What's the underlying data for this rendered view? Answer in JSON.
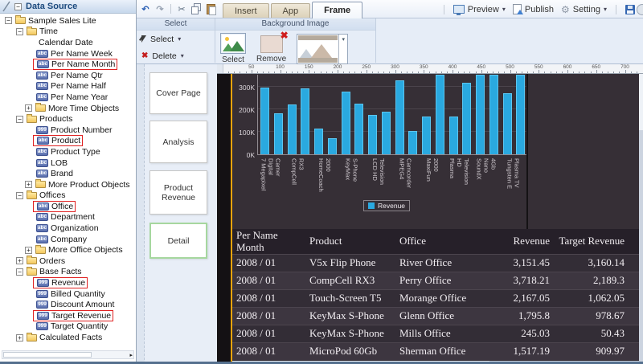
{
  "app": {
    "tabs": [
      {
        "label": "Insert",
        "active": false
      },
      {
        "label": "App",
        "active": false
      },
      {
        "label": "Frame",
        "active": true
      }
    ],
    "actions": [
      {
        "label": "Preview",
        "caret": true
      },
      {
        "label": "Publish",
        "caret": false
      },
      {
        "label": "Setting",
        "caret": true
      }
    ],
    "quickbar_icons": [
      "undo",
      "redo",
      "cut",
      "copy",
      "paste"
    ]
  },
  "icons": {
    "undo": "↶",
    "redo": "↷",
    "cut": "✂",
    "gear": "⚙",
    "caret": "▾",
    "minus": "−",
    "plus": "+",
    "delete": "✖",
    "abc_badge": "abc",
    "num_badge": "999"
  },
  "ribbon": {
    "select_group": {
      "title": "Select",
      "buttons": [
        {
          "label": "Select"
        },
        {
          "label": "Delete"
        }
      ]
    },
    "background_group": {
      "title": "Background Image",
      "select_label": "Select",
      "remove_label": "Remove"
    }
  },
  "tree": {
    "title": "Data Source",
    "items": [
      {
        "label": "Sample Sales Lite",
        "icon": "folder",
        "level": 1,
        "toggle": "minus"
      },
      {
        "label": "Time",
        "icon": "folder",
        "level": 2,
        "toggle": "minus"
      },
      {
        "label": "Calendar Date",
        "icon": "calendar",
        "level": 3
      },
      {
        "label": "Per Name Week",
        "icon": "abc",
        "level": 3
      },
      {
        "label": "Per Name Month",
        "icon": "abc",
        "level": 3,
        "highlight": true
      },
      {
        "label": "Per Name Qtr",
        "icon": "abc",
        "level": 3
      },
      {
        "label": "Per Name Half",
        "icon": "abc",
        "level": 3
      },
      {
        "label": "Per Name Year",
        "icon": "abc",
        "level": 3
      },
      {
        "label": "More Time Objects",
        "icon": "folder",
        "level": 3,
        "toggle": "plus"
      },
      {
        "label": "Products",
        "icon": "folder",
        "level": 2,
        "toggle": "minus"
      },
      {
        "label": "Product Number",
        "icon": "num",
        "level": 3
      },
      {
        "label": "Product",
        "icon": "abc",
        "level": 3,
        "highlight": true
      },
      {
        "label": "Product Type",
        "icon": "abc",
        "level": 3
      },
      {
        "label": "LOB",
        "icon": "abc",
        "level": 3
      },
      {
        "label": "Brand",
        "icon": "abc",
        "level": 3
      },
      {
        "label": "More Product Objects",
        "icon": "folder",
        "level": 3,
        "toggle": "plus"
      },
      {
        "label": "Offices",
        "icon": "folder",
        "level": 2,
        "toggle": "minus"
      },
      {
        "label": "Office",
        "icon": "abc",
        "level": 3,
        "highlight": true
      },
      {
        "label": "Department",
        "icon": "abc",
        "level": 3
      },
      {
        "label": "Organization",
        "icon": "abc",
        "level": 3
      },
      {
        "label": "Company",
        "icon": "abc",
        "level": 3
      },
      {
        "label": "More Office Objects",
        "icon": "folder",
        "level": 3,
        "toggle": "plus"
      },
      {
        "label": "Orders",
        "icon": "folder",
        "level": 2,
        "toggle": "plus"
      },
      {
        "label": "Base Facts",
        "icon": "folder",
        "level": 2,
        "toggle": "minus"
      },
      {
        "label": "Revenue",
        "icon": "num",
        "level": 3,
        "highlight": true
      },
      {
        "label": "Billed Quantity",
        "icon": "num",
        "level": 3
      },
      {
        "label": "Discount Amount",
        "icon": "num",
        "level": 3
      },
      {
        "label": "Target Revenue",
        "icon": "num",
        "level": 3,
        "highlight": true
      },
      {
        "label": "Target Quantity",
        "icon": "num",
        "level": 3
      },
      {
        "label": "Calculated Facts",
        "icon": "folder",
        "level": 2,
        "toggle": "plus"
      }
    ]
  },
  "pages": {
    "items": [
      {
        "label": "Cover Page",
        "active": false
      },
      {
        "label": "Analysis",
        "active": false
      },
      {
        "label": "Product Revenue",
        "active": false
      },
      {
        "label": "Detail",
        "active": true
      }
    ]
  },
  "ruler": {
    "labels": [
      50,
      100,
      150,
      200,
      250,
      300,
      350,
      400,
      450,
      500,
      550,
      600,
      650,
      700
    ]
  },
  "chart_data": {
    "type": "bar",
    "title": "",
    "xlabel": "",
    "ylabel": "",
    "y_ticks": [
      "0K",
      "100K",
      "200K",
      "300K"
    ],
    "ylim_k": [
      0,
      355
    ],
    "grid": "horizontal",
    "bar_color": "#2aa9e0",
    "legend": {
      "position": "bottom-center",
      "entries": [
        "Revenue"
      ]
    },
    "categories": [
      "7 Megapixel Digital Camer",
      "CompCell RX3",
      "HomeCoach 2000",
      "KeyMax S-Phone",
      "LCD HD Television",
      "MPEG4 Camcorder",
      "MaxiFun 2000",
      "Plasma HD Television",
      "SoundX Nano 4Gb",
      "Tungsten E Plasma TV"
    ],
    "category_lines": [
      [
        "7 Megapixel",
        "Digital",
        "Camer"
      ],
      [
        "CompCell",
        "RX3"
      ],
      [
        "HomeCoach",
        "2000"
      ],
      [
        "KeyMax",
        "S-Phone"
      ],
      [
        "LCD HD",
        "Television"
      ],
      [
        "MPEG4",
        "Camcorder"
      ],
      [
        "MaxiFun",
        "2000"
      ],
      [
        "Plasma",
        "HD",
        "Television"
      ],
      [
        "SoundX",
        "Nano",
        "4Gb"
      ],
      [
        "Tungsten E",
        "Plasma TV"
      ]
    ],
    "bars_per_category": 2,
    "series": [
      {
        "name": "Revenue",
        "values_k": [
          296,
          183,
          220,
          293,
          115,
          72,
          278,
          224,
          176,
          190,
          327,
          102,
          168,
          380,
          168,
          318,
          352,
          362,
          270,
          380
        ]
      }
    ],
    "note": "bars above ~355K are clipped at the plot top"
  },
  "table": {
    "headers": [
      "Per Name Month",
      "Product",
      "Office",
      "Revenue",
      "Target Revenue"
    ],
    "rows": [
      [
        "2008 / 01",
        "V5x Flip Phone",
        "River Office",
        "3,151.45",
        "3,160.14"
      ],
      [
        "2008 / 01",
        "CompCell RX3",
        "Perry Office",
        "3,718.21",
        "2,189.3"
      ],
      [
        "2008 / 01",
        "Touch-Screen T5",
        "Morange Office",
        "2,167.05",
        "1,062.05"
      ],
      [
        "2008 / 01",
        "KeyMax S-Phone",
        "Glenn Office",
        "1,795.8",
        "978.67"
      ],
      [
        "2008 / 01",
        "KeyMax S-Phone",
        "Mills Office",
        "245.03",
        "50.43"
      ],
      [
        "2008 / 01",
        "MicroPod 60Gb",
        "Sherman Office",
        "1,517.19",
        "909.97"
      ]
    ]
  },
  "colors": {
    "accent": "#2aa9e0",
    "canvas_bg": "#362f36",
    "highlight_box": "#e02222",
    "active_page_border": "#a6d79f",
    "canvas_guide": "#f2a40c"
  }
}
